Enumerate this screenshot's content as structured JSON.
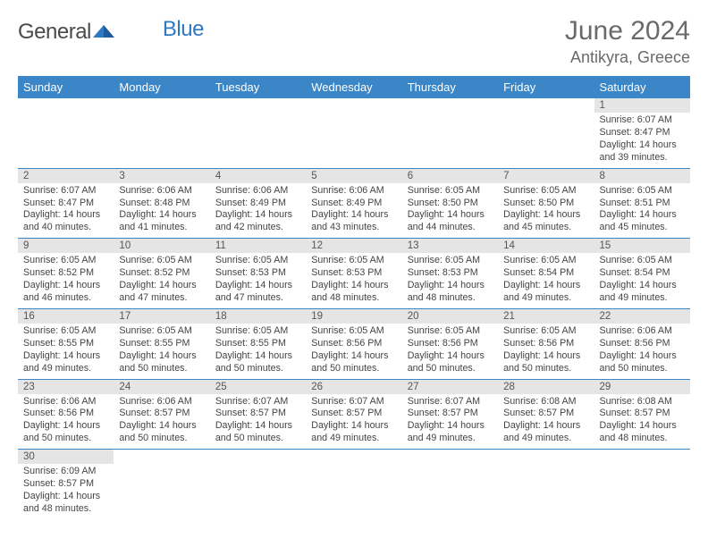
{
  "logo": {
    "general": "General",
    "blue": "Blue"
  },
  "title": {
    "month": "June 2024",
    "location": "Antikyra, Greece"
  },
  "colors": {
    "header_bg": "#3b86c6",
    "header_text": "#ffffff",
    "daynum_bg": "#e5e5e5",
    "border": "#3b86c6",
    "text": "#444444",
    "logo_blue": "#2f78c2",
    "logo_gray": "#4a4a4a",
    "title_gray": "#6a6a6a"
  },
  "weekdays": [
    "Sunday",
    "Monday",
    "Tuesday",
    "Wednesday",
    "Thursday",
    "Friday",
    "Saturday"
  ],
  "weeks": [
    [
      null,
      null,
      null,
      null,
      null,
      null,
      {
        "n": "1",
        "sr": "Sunrise: 6:07 AM",
        "ss": "Sunset: 8:47 PM",
        "dl": "Daylight: 14 hours and 39 minutes."
      }
    ],
    [
      {
        "n": "2",
        "sr": "Sunrise: 6:07 AM",
        "ss": "Sunset: 8:47 PM",
        "dl": "Daylight: 14 hours and 40 minutes."
      },
      {
        "n": "3",
        "sr": "Sunrise: 6:06 AM",
        "ss": "Sunset: 8:48 PM",
        "dl": "Daylight: 14 hours and 41 minutes."
      },
      {
        "n": "4",
        "sr": "Sunrise: 6:06 AM",
        "ss": "Sunset: 8:49 PM",
        "dl": "Daylight: 14 hours and 42 minutes."
      },
      {
        "n": "5",
        "sr": "Sunrise: 6:06 AM",
        "ss": "Sunset: 8:49 PM",
        "dl": "Daylight: 14 hours and 43 minutes."
      },
      {
        "n": "6",
        "sr": "Sunrise: 6:05 AM",
        "ss": "Sunset: 8:50 PM",
        "dl": "Daylight: 14 hours and 44 minutes."
      },
      {
        "n": "7",
        "sr": "Sunrise: 6:05 AM",
        "ss": "Sunset: 8:50 PM",
        "dl": "Daylight: 14 hours and 45 minutes."
      },
      {
        "n": "8",
        "sr": "Sunrise: 6:05 AM",
        "ss": "Sunset: 8:51 PM",
        "dl": "Daylight: 14 hours and 45 minutes."
      }
    ],
    [
      {
        "n": "9",
        "sr": "Sunrise: 6:05 AM",
        "ss": "Sunset: 8:52 PM",
        "dl": "Daylight: 14 hours and 46 minutes."
      },
      {
        "n": "10",
        "sr": "Sunrise: 6:05 AM",
        "ss": "Sunset: 8:52 PM",
        "dl": "Daylight: 14 hours and 47 minutes."
      },
      {
        "n": "11",
        "sr": "Sunrise: 6:05 AM",
        "ss": "Sunset: 8:53 PM",
        "dl": "Daylight: 14 hours and 47 minutes."
      },
      {
        "n": "12",
        "sr": "Sunrise: 6:05 AM",
        "ss": "Sunset: 8:53 PM",
        "dl": "Daylight: 14 hours and 48 minutes."
      },
      {
        "n": "13",
        "sr": "Sunrise: 6:05 AM",
        "ss": "Sunset: 8:53 PM",
        "dl": "Daylight: 14 hours and 48 minutes."
      },
      {
        "n": "14",
        "sr": "Sunrise: 6:05 AM",
        "ss": "Sunset: 8:54 PM",
        "dl": "Daylight: 14 hours and 49 minutes."
      },
      {
        "n": "15",
        "sr": "Sunrise: 6:05 AM",
        "ss": "Sunset: 8:54 PM",
        "dl": "Daylight: 14 hours and 49 minutes."
      }
    ],
    [
      {
        "n": "16",
        "sr": "Sunrise: 6:05 AM",
        "ss": "Sunset: 8:55 PM",
        "dl": "Daylight: 14 hours and 49 minutes."
      },
      {
        "n": "17",
        "sr": "Sunrise: 6:05 AM",
        "ss": "Sunset: 8:55 PM",
        "dl": "Daylight: 14 hours and 50 minutes."
      },
      {
        "n": "18",
        "sr": "Sunrise: 6:05 AM",
        "ss": "Sunset: 8:55 PM",
        "dl": "Daylight: 14 hours and 50 minutes."
      },
      {
        "n": "19",
        "sr": "Sunrise: 6:05 AM",
        "ss": "Sunset: 8:56 PM",
        "dl": "Daylight: 14 hours and 50 minutes."
      },
      {
        "n": "20",
        "sr": "Sunrise: 6:05 AM",
        "ss": "Sunset: 8:56 PM",
        "dl": "Daylight: 14 hours and 50 minutes."
      },
      {
        "n": "21",
        "sr": "Sunrise: 6:05 AM",
        "ss": "Sunset: 8:56 PM",
        "dl": "Daylight: 14 hours and 50 minutes."
      },
      {
        "n": "22",
        "sr": "Sunrise: 6:06 AM",
        "ss": "Sunset: 8:56 PM",
        "dl": "Daylight: 14 hours and 50 minutes."
      }
    ],
    [
      {
        "n": "23",
        "sr": "Sunrise: 6:06 AM",
        "ss": "Sunset: 8:56 PM",
        "dl": "Daylight: 14 hours and 50 minutes."
      },
      {
        "n": "24",
        "sr": "Sunrise: 6:06 AM",
        "ss": "Sunset: 8:57 PM",
        "dl": "Daylight: 14 hours and 50 minutes."
      },
      {
        "n": "25",
        "sr": "Sunrise: 6:07 AM",
        "ss": "Sunset: 8:57 PM",
        "dl": "Daylight: 14 hours and 50 minutes."
      },
      {
        "n": "26",
        "sr": "Sunrise: 6:07 AM",
        "ss": "Sunset: 8:57 PM",
        "dl": "Daylight: 14 hours and 49 minutes."
      },
      {
        "n": "27",
        "sr": "Sunrise: 6:07 AM",
        "ss": "Sunset: 8:57 PM",
        "dl": "Daylight: 14 hours and 49 minutes."
      },
      {
        "n": "28",
        "sr": "Sunrise: 6:08 AM",
        "ss": "Sunset: 8:57 PM",
        "dl": "Daylight: 14 hours and 49 minutes."
      },
      {
        "n": "29",
        "sr": "Sunrise: 6:08 AM",
        "ss": "Sunset: 8:57 PM",
        "dl": "Daylight: 14 hours and 48 minutes."
      }
    ],
    [
      {
        "n": "30",
        "sr": "Sunrise: 6:09 AM",
        "ss": "Sunset: 8:57 PM",
        "dl": "Daylight: 14 hours and 48 minutes."
      },
      null,
      null,
      null,
      null,
      null,
      null
    ]
  ]
}
